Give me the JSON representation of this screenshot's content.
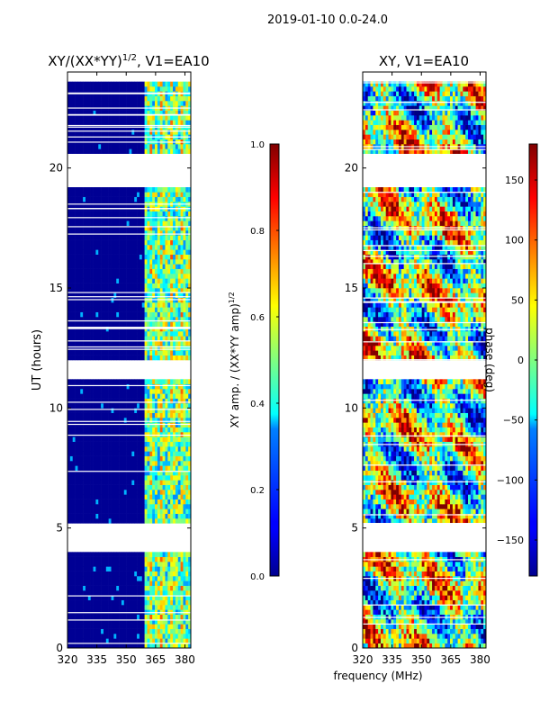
{
  "figure": {
    "suptitle": "2019-01-10 0.0-24.0",
    "xlabel": "frequency (MHz)",
    "colors": {
      "background": "#ffffff",
      "axis": "#000000",
      "gap": "#ffffff",
      "low": "#00008f",
      "high": "#800000"
    }
  },
  "chart_data": [
    {
      "type": "heatmap",
      "title_text": "XY/(XX*YY)",
      "title_exponent": "1/2",
      "title_suffix": ", V1=EA10",
      "xlabel": "",
      "ylabel": "UT (hours)",
      "x_range": [
        320,
        383
      ],
      "y_range": [
        0,
        24
      ],
      "x_ticks": [
        320,
        335,
        350,
        365,
        380
      ],
      "y_ticks": [
        0,
        5,
        10,
        15,
        20
      ],
      "colormap": "jet",
      "colorbar": {
        "label_text": "XY amp. / (XX*YY amp)",
        "label_exponent": "1/2",
        "range": [
          0.0,
          1.0
        ],
        "ticks": [
          0.0,
          0.2,
          0.4,
          0.6,
          0.8,
          1.0
        ],
        "tick_labels": [
          "0.0",
          "0.2",
          "0.4",
          "0.6",
          "0.8",
          "1.0"
        ]
      },
      "gaps_hours": [
        [
          4.1,
          5.2
        ],
        [
          11.2,
          11.9
        ],
        [
          19.3,
          20.5
        ],
        [
          23.65,
          24.0
        ]
      ],
      "pattern": "low amplitude (~0.0) for 320-360 MHz; elevated 0.3-0.8 with vertical stripes for 360-383 MHz"
    },
    {
      "type": "heatmap",
      "title_text": "XY, V1=EA10",
      "xlabel": "",
      "ylabel": "",
      "x_range": [
        320,
        383
      ],
      "y_range": [
        0,
        24
      ],
      "x_ticks": [
        320,
        335,
        350,
        365,
        380
      ],
      "y_ticks": [
        0,
        5,
        10,
        15,
        20
      ],
      "colormap": "jet",
      "colorbar": {
        "label_text": "phase (deg)",
        "label_exponent": "",
        "range": [
          -180,
          180
        ],
        "ticks": [
          -150,
          -100,
          -50,
          0,
          50,
          100,
          150
        ],
        "tick_labels": [
          "−150",
          "−100",
          "−50",
          "0",
          "50",
          "100",
          "150"
        ]
      },
      "gaps_hours": [
        [
          4.1,
          5.2
        ],
        [
          11.2,
          11.9
        ],
        [
          19.3,
          20.5
        ],
        [
          23.65,
          24.0
        ]
      ],
      "pattern": "noisy phase values spanning -180 to 180 degrees"
    }
  ]
}
